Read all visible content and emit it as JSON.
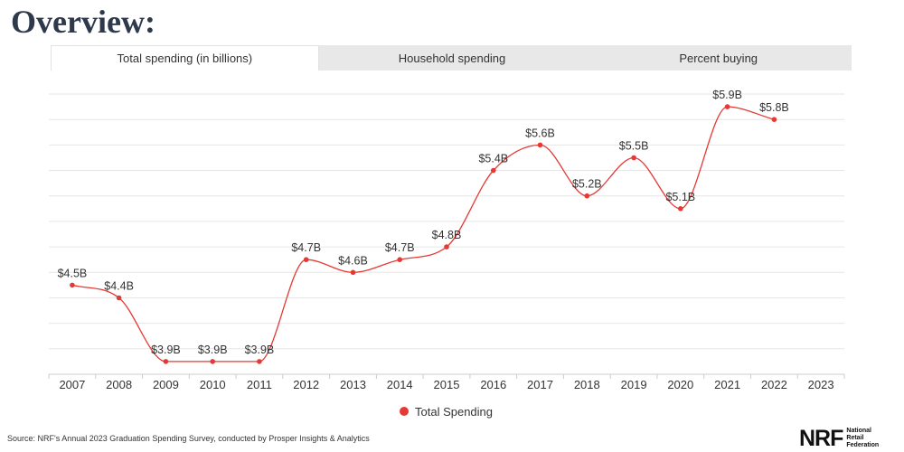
{
  "page": {
    "title": "Overview:"
  },
  "tabs": [
    {
      "label": "Total spending (in billions)",
      "active": true
    },
    {
      "label": "Household spending",
      "active": false
    },
    {
      "label": "Percent buying",
      "active": false
    }
  ],
  "chart_data": {
    "type": "line",
    "title": "",
    "xlabel": "",
    "ylabel": "",
    "categories": [
      "2007",
      "2008",
      "2009",
      "2010",
      "2011",
      "2012",
      "2013",
      "2014",
      "2015",
      "2016",
      "2017",
      "2018",
      "2019",
      "2020",
      "2021",
      "2022",
      "2023"
    ],
    "series": [
      {
        "name": "Total Spending",
        "color": "#e53935",
        "values": [
          4.5,
          4.4,
          3.9,
          3.9,
          3.9,
          4.7,
          4.6,
          4.7,
          4.8,
          5.4,
          5.6,
          5.2,
          5.5,
          5.1,
          5.9,
          5.8,
          null
        ],
        "labels": [
          "$4.5B",
          "$4.4B",
          "$3.9B",
          "$3.9B",
          "$3.9B",
          "$4.7B",
          "$4.6B",
          "$4.7B",
          "$4.8B",
          "$5.4B",
          "$5.6B",
          "$5.2B",
          "$5.5B",
          "$5.1B",
          "$5.9B",
          "$5.8B",
          ""
        ]
      }
    ],
    "ylim": [
      3.8,
      6.0
    ],
    "grid": true,
    "legend": "bottom-center"
  },
  "legend": {
    "label": "Total Spending"
  },
  "footer": {
    "source": "Source: NRF's Annual 2023 Graduation Spending Survey, conducted by Prosper Insights & Analytics",
    "logo_mark": "NRF",
    "logo_line1": "National",
    "logo_line2": "Retail",
    "logo_line3": "Federation"
  }
}
